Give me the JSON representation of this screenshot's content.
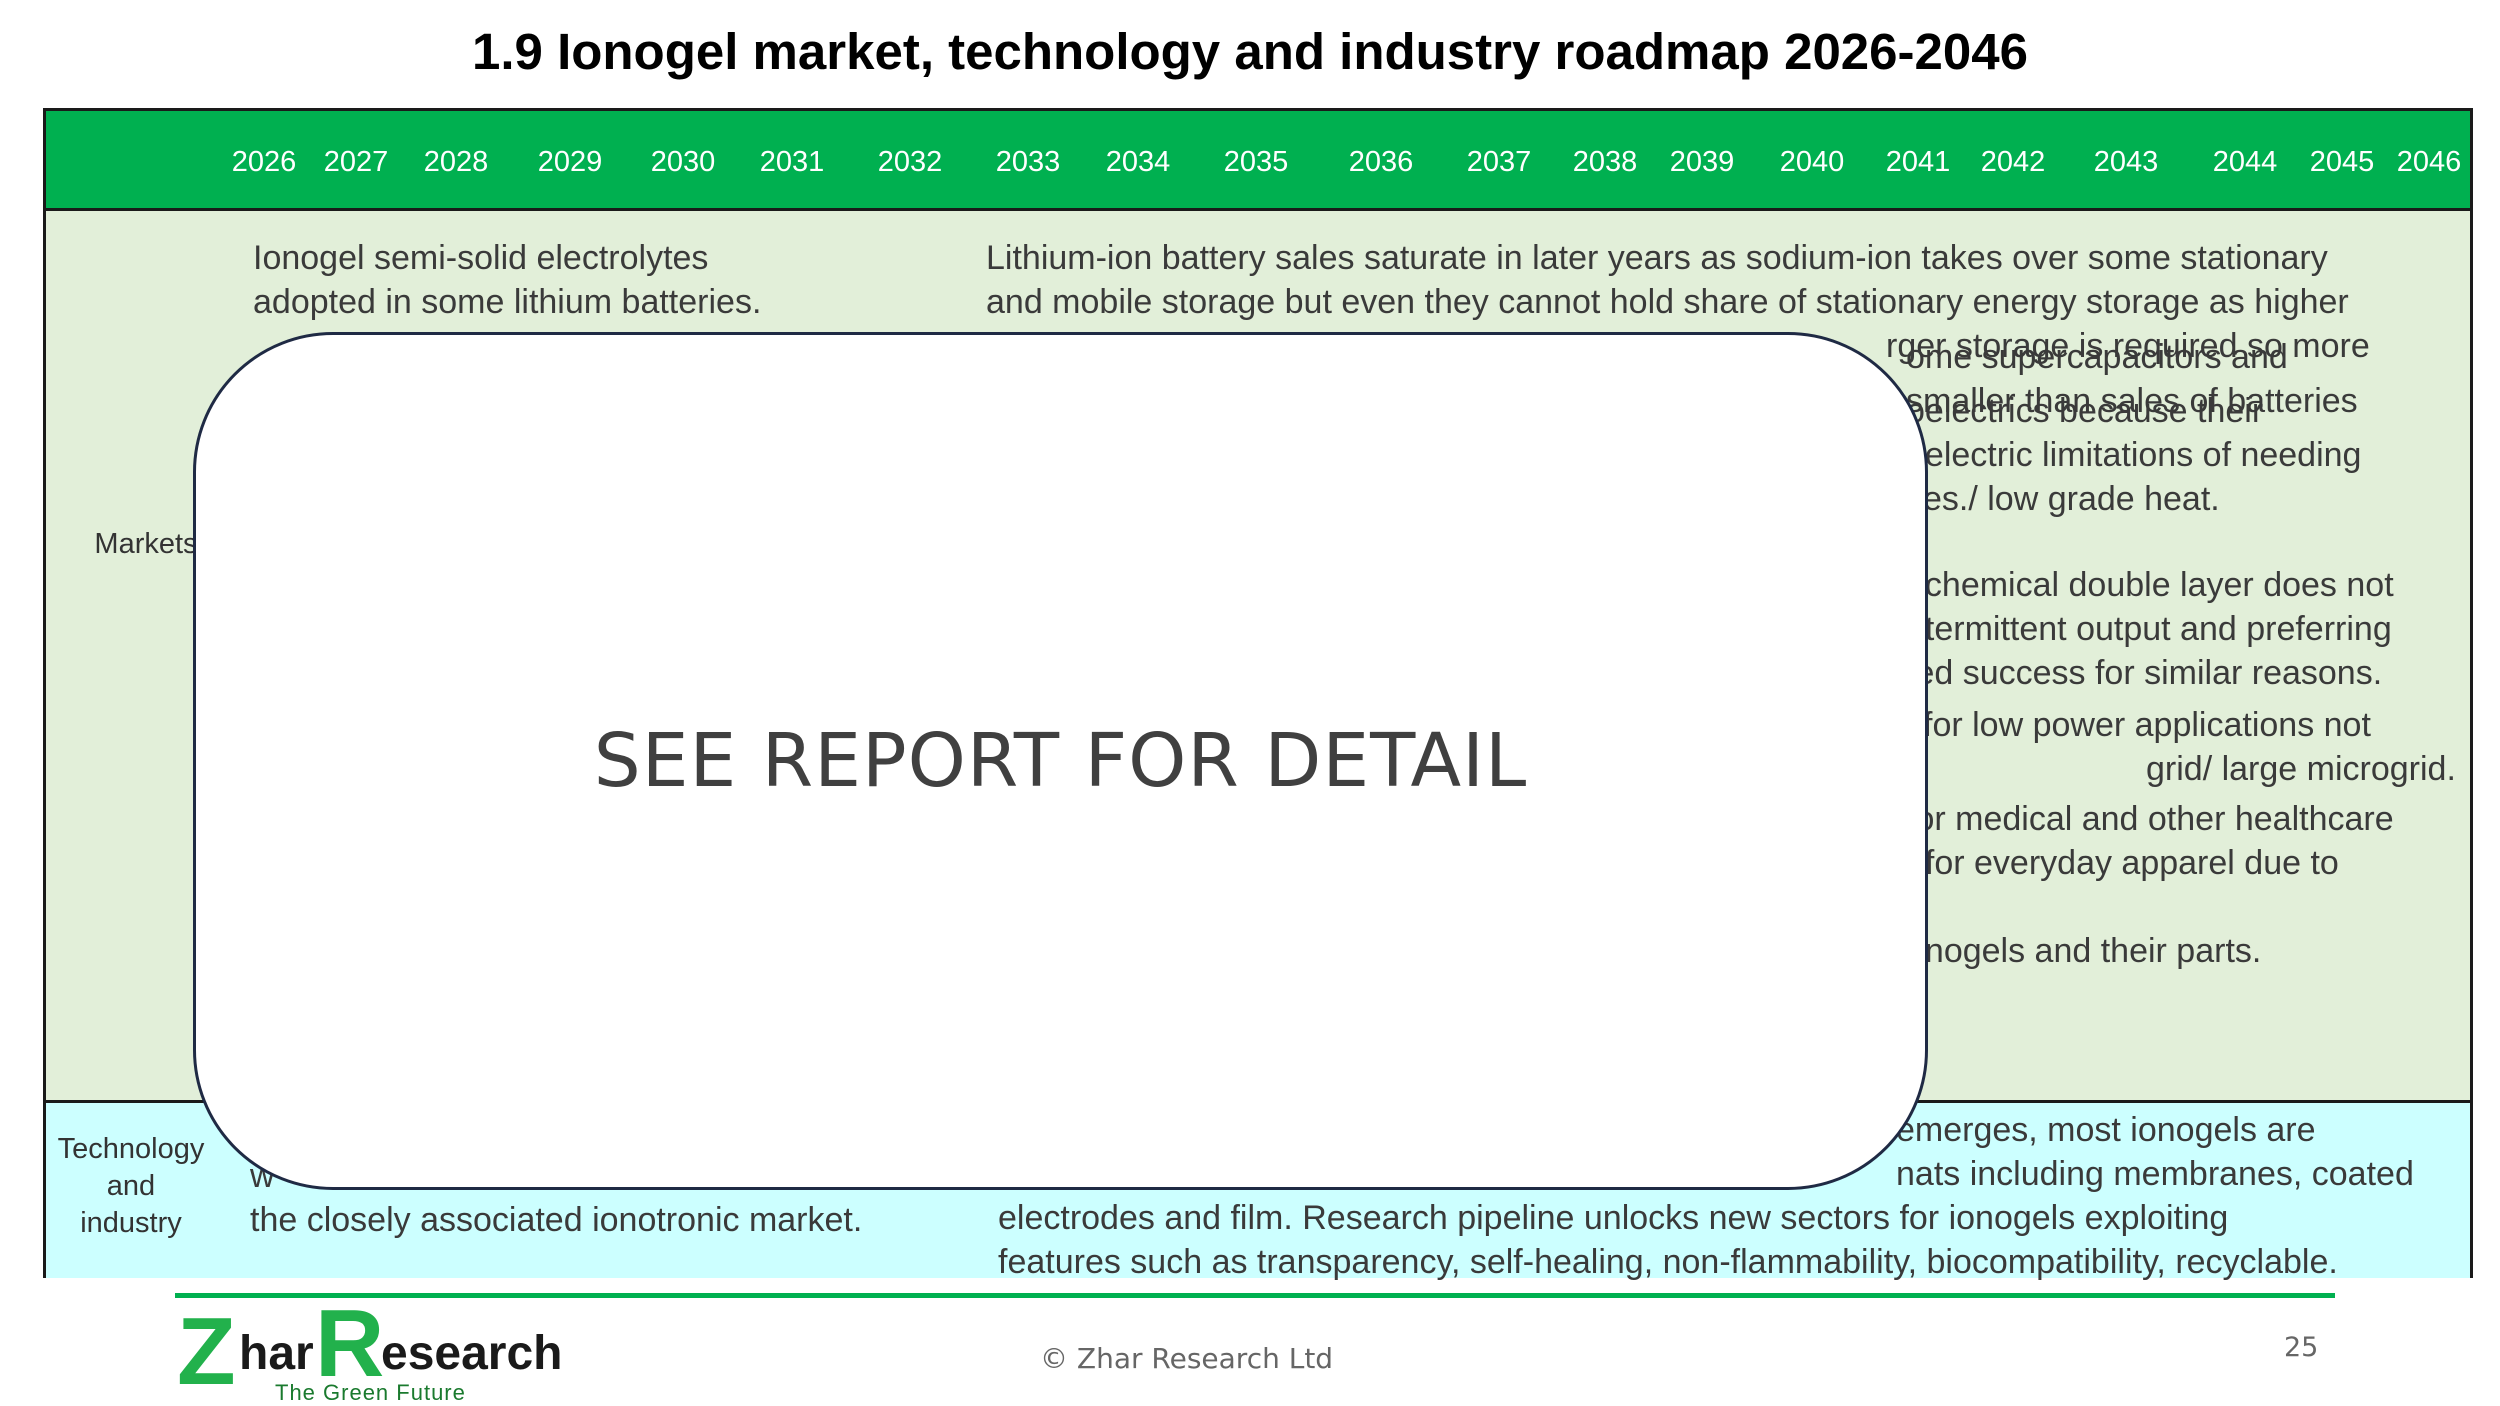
{
  "title": "1.9 Ionogel market, technology and industry roadmap 2026-2046",
  "years": [
    "2026",
    "2027",
    "2028",
    "2029",
    "2030",
    "2031",
    "2032",
    "2033",
    "2034",
    "2035",
    "2036",
    "2037",
    "2038",
    "2039",
    "2040",
    "2041",
    "2042",
    "2043",
    "2044",
    "2045",
    "2046"
  ],
  "rows": {
    "markets_label": "Markets",
    "tech_label_lines": [
      "Technology",
      "and",
      "industry"
    ]
  },
  "markets": {
    "early_lines": [
      "Ionogel semi-solid electrolytes",
      "adopted in some lithium batteries."
    ],
    "later_lines": [
      "Lithium-ion battery sales saturate in later years as sodium-ion takes over some stationary",
      "and mobile storage but even they cannot hold share of stationary energy storage as higher",
      "rger storage is required so more"
    ],
    "fragments": [
      [
        "ome supercapacitors and",
        " smaller than sales of batteries"
      ],
      [
        "oelectrics because their",
        "oelectric limitations of needing",
        "ces./ low grade heat."
      ],
      [
        "ochemical double layer does not",
        "ntermittent output and preferring",
        "ted success for similar reasons."
      ],
      [
        "l for low power applications not",
        "grid/ large microgrid."
      ],
      [
        " for medical and other healthcare",
        "t for everyday apparel due to"
      ],
      [
        "onogels and their parts."
      ]
    ]
  },
  "technology": {
    "early_lines": [
      "w",
      "the closely associated ionotronic market."
    ],
    "later_lines": [
      "emerges, most ionogels are",
      "nats including membranes, coated",
      "electrodes and film. Research pipeline unlocks new sectors for ionogels exploiting",
      "features such as transparency, self-healing, non-flammability, biocompatibility, recyclable."
    ]
  },
  "overlay": {
    "text": "SEE REPORT FOR DETAIL"
  },
  "footer": {
    "logo_z": "Z",
    "logo_har": "har",
    "logo_r": "R",
    "logo_esearch": "esearch",
    "tagline": "The Green Future",
    "copyright": "© Zhar Research Ltd",
    "page_number": "25"
  },
  "colors": {
    "header_green": "#00b050",
    "markets_band": "#e2efd9",
    "tech_band": "#ccffff"
  }
}
